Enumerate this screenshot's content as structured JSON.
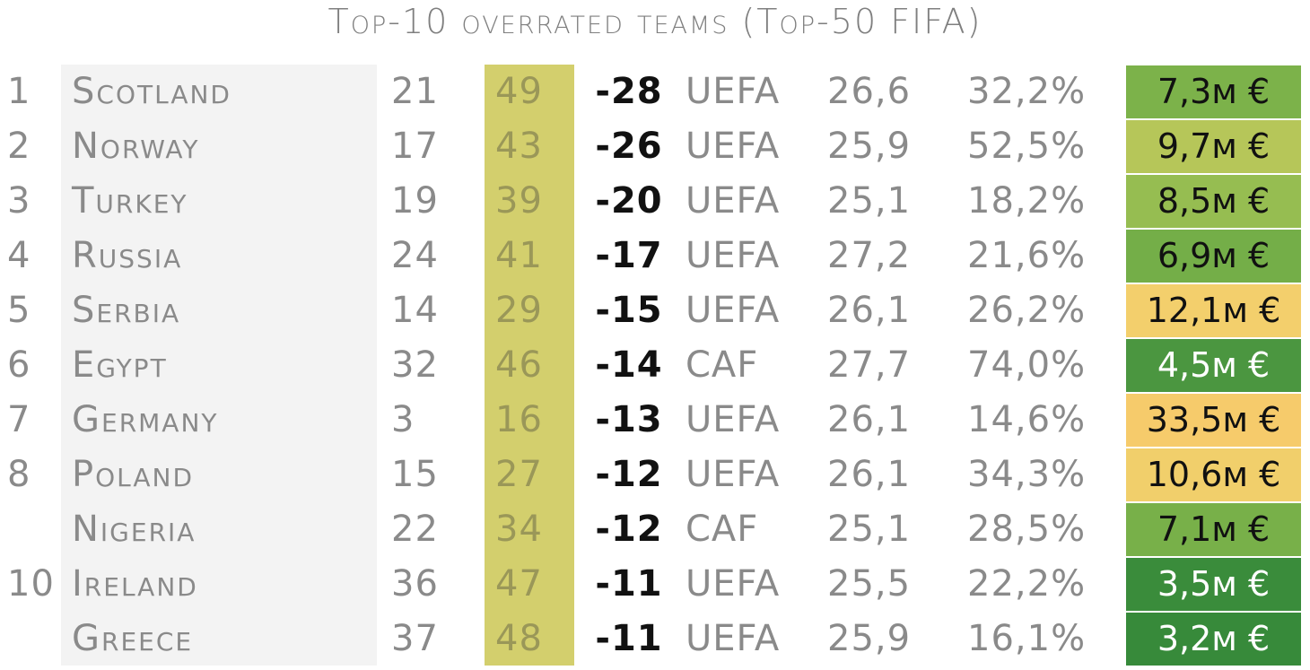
{
  "title": "Top-10 overrated teams (Top-50 FIFA)",
  "colors": {
    "name_column_bg": "#f3f3f3",
    "fifa_column_bg": "#d3cf6d",
    "value_green_light": "#9ebd52",
    "value_green_mid": "#6fab47",
    "value_green_dark": "#3f8f3c",
    "value_yellow": "#f4cd6c",
    "value_yellowgreen": "#c5c85e"
  },
  "rows": [
    {
      "rank": "1",
      "team": "Scotland",
      "elo": "21",
      "fifa": "49",
      "diff": "-28",
      "conf": "UEFA",
      "age": "26,6",
      "pct": "32,2%",
      "value": "7,3м €",
      "value_color": "#7cb24a",
      "value_text_color": "#111111"
    },
    {
      "rank": "2",
      "team": "Norway",
      "elo": "17",
      "fifa": "43",
      "diff": "-26",
      "conf": "UEFA",
      "age": "25,9",
      "pct": "52,5%",
      "value": "9,7м €",
      "value_color": "#b6c659",
      "value_text_color": "#111111"
    },
    {
      "rank": "3",
      "team": "Turkey",
      "elo": "19",
      "fifa": "39",
      "diff": "-20",
      "conf": "UEFA",
      "age": "25,1",
      "pct": "18,2%",
      "value": "8,5м €",
      "value_color": "#96bd51",
      "value_text_color": "#111111"
    },
    {
      "rank": "4",
      "team": "Russia",
      "elo": "24",
      "fifa": "41",
      "diff": "-17",
      "conf": "UEFA",
      "age": "27,2",
      "pct": "21,6%",
      "value": "6,9м €",
      "value_color": "#74ae48",
      "value_text_color": "#111111"
    },
    {
      "rank": "5",
      "team": "Serbia",
      "elo": "14",
      "fifa": "29",
      "diff": "-15",
      "conf": "UEFA",
      "age": "26,1",
      "pct": "26,2%",
      "value": "12,1м €",
      "value_color": "#f3cf6c",
      "value_text_color": "#111111"
    },
    {
      "rank": "6",
      "team": "Egypt",
      "elo": "32",
      "fifa": "46",
      "diff": "-14",
      "conf": "CAF",
      "age": "27,7",
      "pct": "74,0%",
      "value": "4,5м €",
      "value_color": "#4b9640",
      "value_text_color": "#ffffff"
    },
    {
      "rank": "7",
      "team": "Germany",
      "elo": "3",
      "fifa": "16",
      "diff": "-13",
      "conf": "UEFA",
      "age": "26,1",
      "pct": "14,6%",
      "value": "33,5м €",
      "value_color": "#f6cb6b",
      "value_text_color": "#111111"
    },
    {
      "rank": "8",
      "team": "Poland",
      "elo": "15",
      "fifa": "27",
      "diff": "-12",
      "conf": "UEFA",
      "age": "26,1",
      "pct": "34,3%",
      "value": "10,6м €",
      "value_color": "#f1cf6b",
      "value_text_color": "#111111"
    },
    {
      "rank": "",
      "team": "Nigeria",
      "elo": "22",
      "fifa": "34",
      "diff": "-12",
      "conf": "CAF",
      "age": "25,1",
      "pct": "28,5%",
      "value": "7,1м €",
      "value_color": "#78b049",
      "value_text_color": "#111111"
    },
    {
      "rank": "10",
      "team": "Ireland",
      "elo": "36",
      "fifa": "47",
      "diff": "-11",
      "conf": "UEFA",
      "age": "25,5",
      "pct": "22,2%",
      "value": "3,5м €",
      "value_color": "#3a8c3b",
      "value_text_color": "#ffffff"
    },
    {
      "rank": "",
      "team": "Greece",
      "elo": "37",
      "fifa": "48",
      "diff": "-11",
      "conf": "UEFA",
      "age": "25,9",
      "pct": "16,1%",
      "value": "3,2м €",
      "value_color": "#378a3a",
      "value_text_color": "#ffffff"
    }
  ]
}
